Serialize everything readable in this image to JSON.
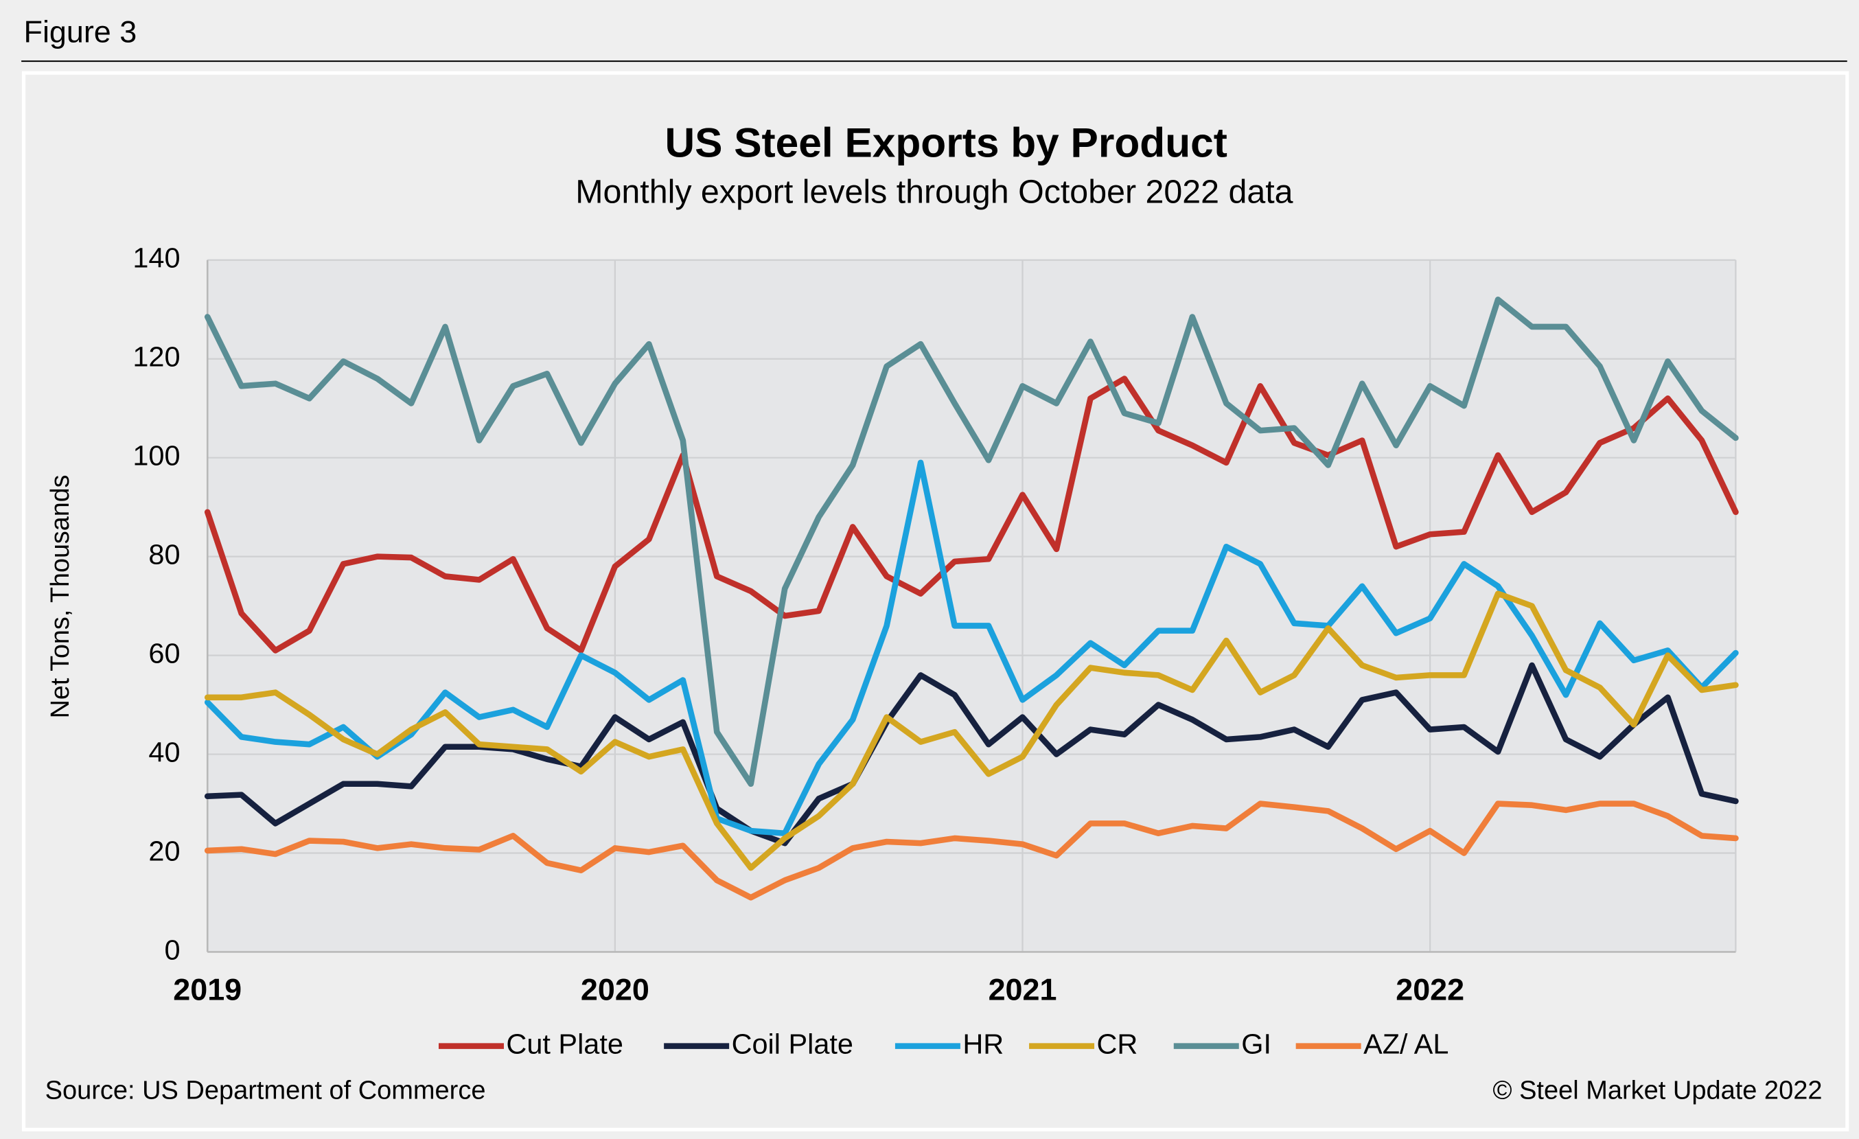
{
  "figure_label": "Figure 3",
  "chart_data": {
    "type": "line",
    "title": "US Steel Exports by Product",
    "subtitle": "Monthly export levels through October 2022 data",
    "y_label": "Net Tons, Thousands",
    "source": "Source: US Department of Commerce",
    "credit": "© Steel Market Update 2022",
    "categories": [
      "2019",
      null,
      null,
      null,
      null,
      null,
      null,
      null,
      null,
      null,
      null,
      null,
      "2020",
      null,
      null,
      null,
      null,
      null,
      null,
      null,
      null,
      null,
      null,
      null,
      "2021",
      null,
      null,
      null,
      null,
      null,
      null,
      null,
      null,
      null,
      null,
      null,
      "2022",
      null,
      null,
      null,
      null,
      null,
      null,
      null,
      null,
      null
    ],
    "ylim": [
      0,
      140
    ],
    "yticks": [
      0,
      20,
      40,
      60,
      80,
      100,
      120,
      140
    ],
    "grid": true,
    "legend": "bottom",
    "series": [
      {
        "name": "Cut Plate",
        "color": "#c0302a",
        "values": [
          89,
          68.5,
          61,
          65,
          78.5,
          80,
          79.8,
          76,
          75.3,
          79.5,
          65.5,
          61,
          78,
          83.5,
          100.5,
          76,
          73,
          68,
          69,
          86,
          76,
          72.5,
          79,
          79.5,
          92.5,
          81.5,
          112,
          116,
          105.5,
          102.5,
          99,
          114.5,
          103,
          100.5,
          103.5,
          82,
          84.5,
          85,
          100.5,
          89,
          93,
          103,
          106,
          112,
          103.5,
          89
        ]
      },
      {
        "name": "Coil Plate",
        "color": "#16213f",
        "values": [
          31.5,
          31.8,
          26,
          30,
          34,
          34,
          33.5,
          41.5,
          41.5,
          41,
          39,
          37.5,
          47.5,
          43,
          46.5,
          29,
          24.5,
          22,
          31,
          34,
          46.5,
          56,
          52,
          42,
          47.5,
          40,
          45,
          44,
          50,
          47,
          43,
          43.5,
          45,
          41.5,
          51,
          52.5,
          45,
          45.5,
          40.5,
          58,
          43,
          39.5,
          46,
          51.5,
          32,
          30.5
        ]
      },
      {
        "name": "HR",
        "color": "#1ba1dd",
        "values": [
          50.5,
          43.5,
          42.5,
          42,
          45.5,
          39.5,
          44,
          52.5,
          47.5,
          49,
          45.5,
          60,
          56.5,
          51,
          55,
          27,
          24.5,
          24,
          38,
          47,
          66,
          99,
          66,
          66,
          51,
          56,
          62.5,
          58,
          65,
          65,
          82,
          78.5,
          66.5,
          66,
          74,
          64.5,
          67.5,
          78.5,
          74,
          64,
          52,
          66.5,
          59,
          61,
          53.5,
          60.5
        ]
      },
      {
        "name": "CR",
        "color": "#d4a620",
        "values": [
          51.5,
          51.5,
          52.5,
          48,
          43,
          40,
          45,
          48.5,
          42,
          41.5,
          41,
          36.5,
          42.5,
          39.5,
          41,
          26,
          17,
          23,
          27.5,
          34,
          47.5,
          42.5,
          44.5,
          36,
          39.5,
          50,
          57.5,
          56.5,
          56,
          53,
          63,
          52.5,
          56,
          65.5,
          58,
          55.5,
          56,
          56,
          72.5,
          70,
          57,
          53.5,
          46,
          60,
          53,
          54
        ]
      },
      {
        "name": "GI",
        "color": "#5a8e95",
        "values": [
          128.5,
          114.5,
          115,
          112,
          119.5,
          116,
          111,
          126.5,
          103.5,
          114.5,
          117,
          103,
          115,
          123,
          103.5,
          44.5,
          34,
          73.5,
          88,
          98.5,
          118.5,
          123,
          111,
          99.5,
          114.5,
          111,
          123.5,
          109,
          107,
          128.5,
          111,
          105.5,
          106,
          98.5,
          115,
          102.5,
          114.5,
          110.5,
          132,
          126.5,
          126.5,
          118.5,
          103.5,
          119.5,
          109.5,
          104
        ]
      },
      {
        "name": "AZ/ AL",
        "color": "#f07e3a",
        "values": [
          20.5,
          20.8,
          19.8,
          22.5,
          22.3,
          21,
          21.8,
          21,
          20.7,
          23.5,
          18,
          16.5,
          21,
          20.2,
          21.5,
          14.5,
          11,
          14.5,
          17,
          21,
          22.3,
          22,
          23,
          22.5,
          21.8,
          19.5,
          26,
          26,
          24,
          25.5,
          25,
          30,
          29.3,
          28.5,
          25,
          20.8,
          24.5,
          20,
          30,
          29.7,
          28.7,
          30,
          30,
          27.5,
          23.5,
          23
        ]
      }
    ]
  }
}
